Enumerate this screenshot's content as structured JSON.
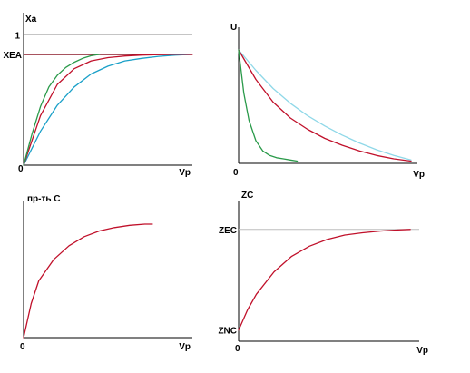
{
  "chart_data": [
    {
      "type": "line",
      "ylabel": "Xa",
      "xlabel": "Vp",
      "origin_label": "0",
      "ytick_labels": [
        "1",
        "XEA"
      ],
      "y_reference_values": [
        1.0,
        0.85
      ],
      "xlim": [
        0,
        1
      ],
      "ylim": [
        0,
        1.17
      ],
      "colors": {
        "axis": "#000000",
        "ref_one": "#bdbdbd",
        "ref_eq": "#8b1a2a"
      },
      "series": [
        {
          "color": "#1aa0c8",
          "x": [
            0,
            0.1,
            0.2,
            0.3,
            0.4,
            0.5,
            0.6,
            0.7,
            0.8,
            0.9,
            1.0
          ],
          "y": [
            0,
            0.26,
            0.46,
            0.6,
            0.7,
            0.76,
            0.8,
            0.82,
            0.835,
            0.845,
            0.85
          ]
        },
        {
          "color": "#c0102a",
          "x": [
            0,
            0.1,
            0.2,
            0.3,
            0.4,
            0.5,
            0.6,
            0.7,
            0.8,
            0.9,
            1.0
          ],
          "y": [
            0,
            0.38,
            0.62,
            0.74,
            0.8,
            0.825,
            0.838,
            0.845,
            0.848,
            0.85,
            0.85
          ]
        },
        {
          "color": "#2a9a4a",
          "x": [
            0,
            0.05,
            0.1,
            0.15,
            0.2,
            0.25,
            0.3,
            0.35,
            0.4,
            0.45
          ],
          "y": [
            0,
            0.24,
            0.45,
            0.6,
            0.69,
            0.75,
            0.79,
            0.82,
            0.84,
            0.85
          ]
        }
      ]
    },
    {
      "type": "line",
      "ylabel": "U",
      "xlabel": "Vp",
      "origin_label": "0",
      "xlim": [
        0,
        1
      ],
      "ylim": [
        0,
        1.2
      ],
      "colors": {
        "axis": "#000000"
      },
      "series": [
        {
          "color": "#8fd8e8",
          "x": [
            0,
            0.1,
            0.2,
            0.3,
            0.4,
            0.5,
            0.6,
            0.7,
            0.8,
            0.9,
            1.0
          ],
          "y": [
            1.0,
            0.82,
            0.66,
            0.53,
            0.42,
            0.33,
            0.25,
            0.18,
            0.12,
            0.07,
            0.03
          ]
        },
        {
          "color": "#c0102a",
          "x": [
            0,
            0.1,
            0.2,
            0.3,
            0.4,
            0.5,
            0.6,
            0.7,
            0.8,
            0.9,
            1.0
          ],
          "y": [
            1.0,
            0.74,
            0.54,
            0.4,
            0.3,
            0.22,
            0.16,
            0.11,
            0.07,
            0.04,
            0.02
          ]
        },
        {
          "color": "#2a9a4a",
          "x": [
            0,
            0.03,
            0.06,
            0.1,
            0.14,
            0.18,
            0.22,
            0.26,
            0.3,
            0.34
          ],
          "y": [
            1.0,
            0.62,
            0.38,
            0.2,
            0.11,
            0.07,
            0.05,
            0.04,
            0.03,
            0.02
          ]
        }
      ]
    },
    {
      "type": "line",
      "ylabel": "пр-ть С",
      "xlabel": "Vp",
      "origin_label": "0",
      "xlim": [
        0,
        1
      ],
      "ylim": [
        0,
        1.2
      ],
      "colors": {
        "axis": "#000000"
      },
      "series": [
        {
          "color": "#c0102a",
          "x": [
            0,
            0.05,
            0.1,
            0.2,
            0.3,
            0.4,
            0.5,
            0.6,
            0.7,
            0.8,
            0.85
          ],
          "y": [
            0,
            0.3,
            0.5,
            0.69,
            0.81,
            0.89,
            0.94,
            0.97,
            0.99,
            1.0,
            1.0
          ]
        }
      ]
    },
    {
      "type": "line",
      "ylabel": "ZC",
      "xlabel": "Vp",
      "origin_label": "0",
      "ytick_labels": [
        "ZEC",
        "ZNC"
      ],
      "y_reference_values": [
        1.0,
        0.1
      ],
      "xlim": [
        0,
        1
      ],
      "ylim": [
        0,
        1.25
      ],
      "colors": {
        "axis": "#000000",
        "ref_eq": "#bdbdbd"
      },
      "series": [
        {
          "color": "#c0102a",
          "x": [
            0,
            0.05,
            0.1,
            0.2,
            0.3,
            0.4,
            0.5,
            0.6,
            0.7,
            0.8,
            0.9,
            0.97
          ],
          "y": [
            0.1,
            0.28,
            0.42,
            0.62,
            0.76,
            0.85,
            0.91,
            0.95,
            0.97,
            0.985,
            0.995,
            1.0
          ]
        }
      ]
    }
  ]
}
